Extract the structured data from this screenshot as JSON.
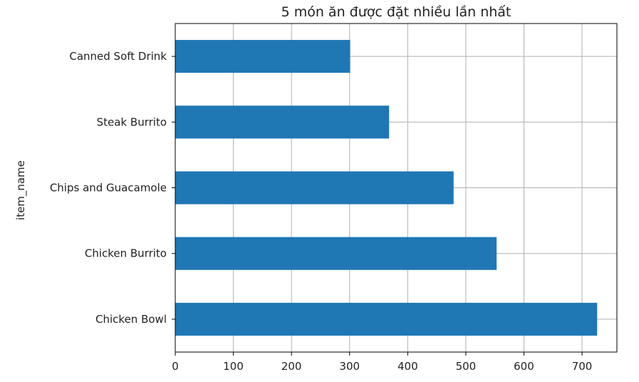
{
  "chart_data": {
    "type": "bar",
    "orientation": "horizontal",
    "title": "5 món ăn được đặt nhiều lần nhất",
    "xlabel": "",
    "ylabel": "item_name",
    "categories": [
      "Chicken Bowl",
      "Chicken Burrito",
      "Chips and Guacamole",
      "Steak Burrito",
      "Canned Soft Drink"
    ],
    "values": [
      726,
      553,
      479,
      368,
      301
    ],
    "xlim": [
      0,
      760
    ],
    "xticks": [
      0,
      100,
      200,
      300,
      400,
      500,
      600,
      700
    ],
    "grid": true,
    "legend": false,
    "bar_color": "#1f77b4"
  }
}
